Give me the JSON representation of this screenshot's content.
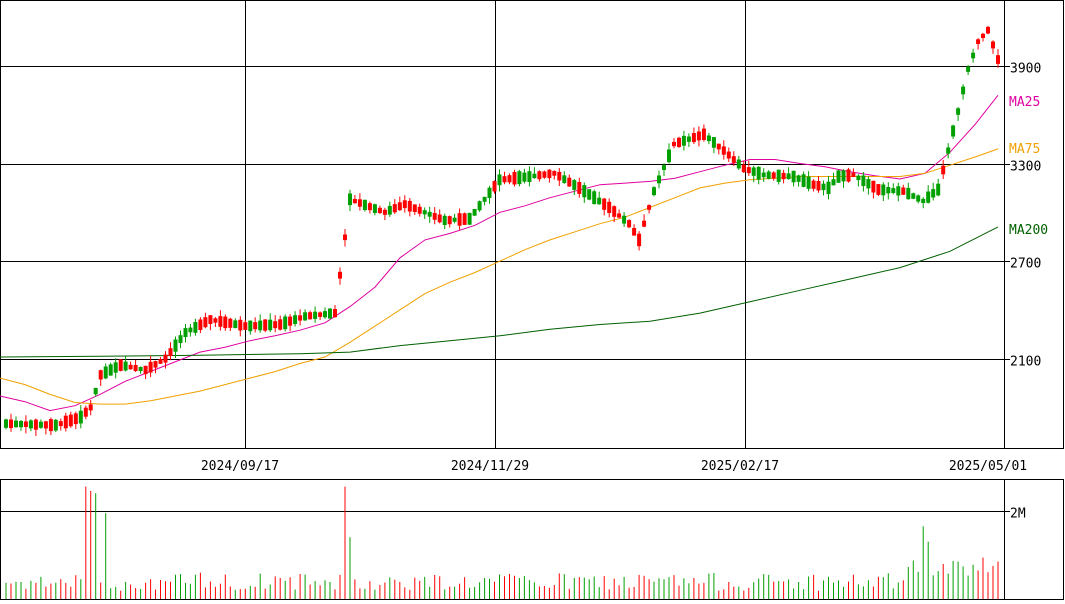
{
  "chart_data": {
    "type": "candlestick",
    "price_panel": {
      "y_ticks": [
        2100,
        2700,
        3300,
        3900
      ],
      "y_tick_labels": [
        "2100",
        "2700",
        "3300",
        "3900"
      ],
      "ylim": [
        1550,
        4300
      ],
      "x_tick_labels": [
        "2024/09/17",
        "2024/11/29",
        "2025/02/17",
        "2025/05/01"
      ],
      "up_color": "#00a000",
      "down_color": "#ff0000",
      "ma_lines": [
        {
          "name": "MA25",
          "color": "#e000a0",
          "points": [
            [
              0,
              1870
            ],
            [
              25,
              1835
            ],
            [
              50,
              1780
            ],
            [
              75,
              1810
            ],
            [
              100,
              1880
            ],
            [
              125,
              1960
            ],
            [
              150,
              2020
            ],
            [
              175,
              2080
            ],
            [
              200,
              2140
            ],
            [
              225,
              2170
            ],
            [
              250,
              2210
            ],
            [
              275,
              2240
            ],
            [
              300,
              2275
            ],
            [
              325,
              2320
            ],
            [
              350,
              2420
            ],
            [
              375,
              2540
            ],
            [
              400,
              2720
            ],
            [
              425,
              2830
            ],
            [
              450,
              2870
            ],
            [
              475,
              2920
            ],
            [
              500,
              3000
            ],
            [
              525,
              3040
            ],
            [
              550,
              3090
            ],
            [
              575,
              3130
            ],
            [
              600,
              3170
            ],
            [
              625,
              3180
            ],
            [
              650,
              3190
            ],
            [
              675,
              3210
            ],
            [
              700,
              3250
            ],
            [
              725,
              3290
            ],
            [
              750,
              3325
            ],
            [
              775,
              3325
            ],
            [
              800,
              3300
            ],
            [
              825,
              3280
            ],
            [
              850,
              3250
            ],
            [
              875,
              3225
            ],
            [
              900,
              3205
            ],
            [
              925,
              3240
            ],
            [
              950,
              3370
            ],
            [
              975,
              3540
            ],
            [
              998,
              3720
            ]
          ]
        },
        {
          "name": "MA75",
          "color": "#f0a000",
          "points": [
            [
              0,
              1980
            ],
            [
              25,
              1940
            ],
            [
              50,
              1880
            ],
            [
              75,
              1830
            ],
            [
              100,
              1820
            ],
            [
              125,
              1820
            ],
            [
              150,
              1840
            ],
            [
              175,
              1870
            ],
            [
              200,
              1900
            ],
            [
              225,
              1940
            ],
            [
              250,
              1980
            ],
            [
              275,
              2020
            ],
            [
              300,
              2070
            ],
            [
              325,
              2110
            ],
            [
              350,
              2200
            ],
            [
              375,
              2300
            ],
            [
              400,
              2400
            ],
            [
              425,
              2500
            ],
            [
              450,
              2570
            ],
            [
              475,
              2630
            ],
            [
              500,
              2700
            ],
            [
              525,
              2770
            ],
            [
              550,
              2830
            ],
            [
              575,
              2880
            ],
            [
              600,
              2930
            ],
            [
              625,
              2970
            ],
            [
              650,
              3030
            ],
            [
              675,
              3090
            ],
            [
              700,
              3150
            ],
            [
              725,
              3180
            ],
            [
              750,
              3200
            ],
            [
              775,
              3210
            ],
            [
              800,
              3220
            ],
            [
              825,
              3220
            ],
            [
              850,
              3220
            ],
            [
              875,
              3220
            ],
            [
              900,
              3220
            ],
            [
              925,
              3240
            ],
            [
              950,
              3290
            ],
            [
              975,
              3340
            ],
            [
              998,
              3390
            ]
          ]
        },
        {
          "name": "MA200",
          "color": "#006000",
          "points": [
            [
              0,
              2110
            ],
            [
              100,
              2115
            ],
            [
              200,
              2120
            ],
            [
              300,
              2130
            ],
            [
              350,
              2140
            ],
            [
              400,
              2180
            ],
            [
              450,
              2210
            ],
            [
              500,
              2240
            ],
            [
              550,
              2280
            ],
            [
              600,
              2310
            ],
            [
              650,
              2330
            ],
            [
              700,
              2380
            ],
            [
              750,
              2450
            ],
            [
              800,
              2520
            ],
            [
              850,
              2590
            ],
            [
              900,
              2660
            ],
            [
              950,
              2760
            ],
            [
              998,
              2910
            ]
          ]
        }
      ]
    },
    "volume_panel": {
      "y_ticks": [
        2000000
      ],
      "y_tick_labels": [
        "2M"
      ],
      "ylim": [
        0,
        2700000
      ]
    }
  }
}
